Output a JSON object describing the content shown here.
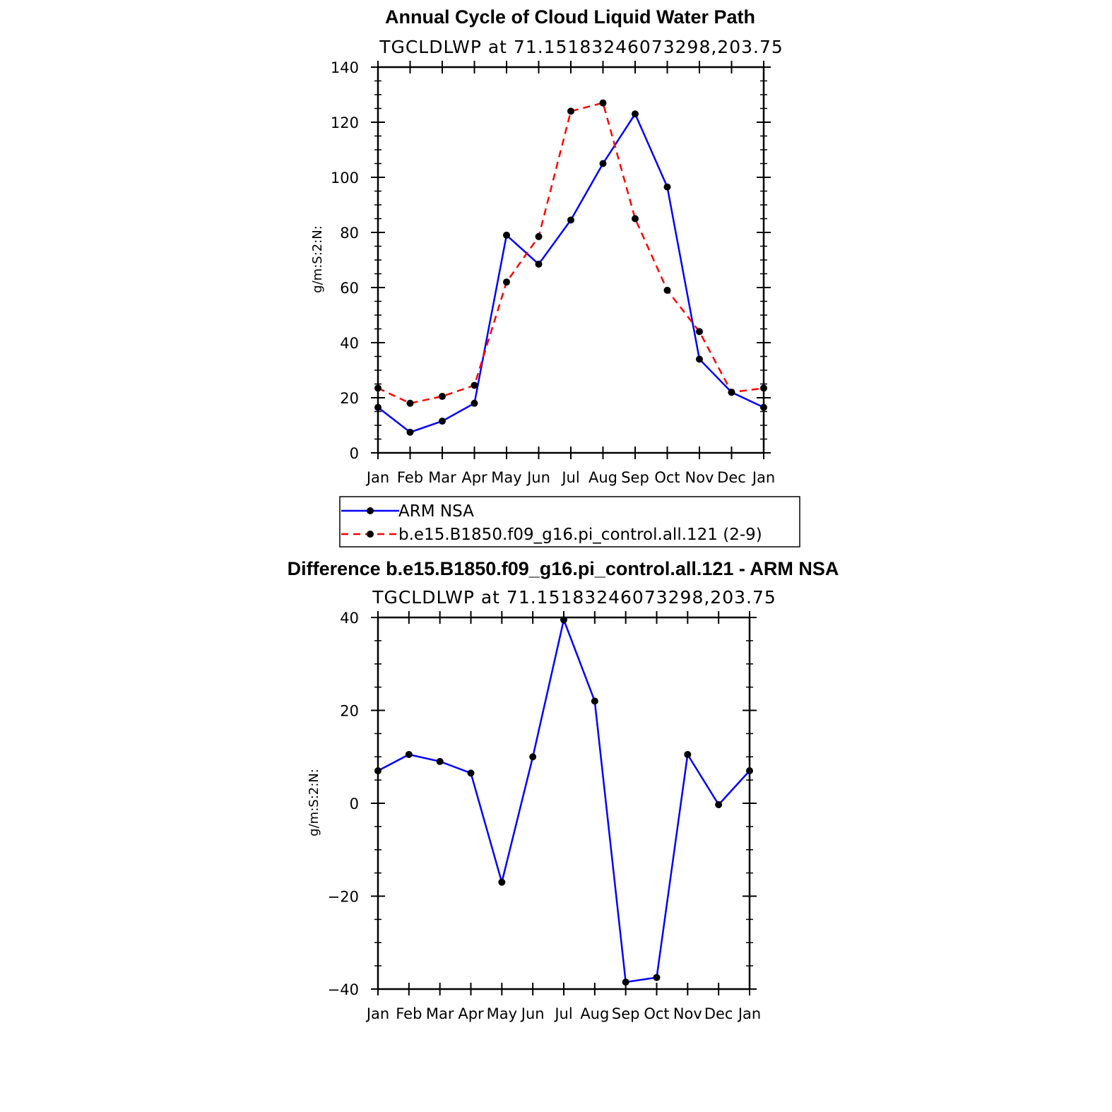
{
  "chart_data": [
    {
      "type": "line",
      "title": "Annual Cycle of Cloud Liquid Water Path",
      "subtitle": "TGCLDLWP at 71.15183246073298,203.75",
      "ylabel": "g/m:S:2:N:",
      "ylim": [
        0,
        140
      ],
      "yticks": [
        0,
        20,
        40,
        60,
        80,
        100,
        120,
        140
      ],
      "x": [
        "Jan",
        "Feb",
        "Mar",
        "Apr",
        "May",
        "Jun",
        "Jul",
        "Aug",
        "Sep",
        "Oct",
        "Nov",
        "Dec",
        "Jan"
      ],
      "series": [
        {
          "name": "ARM NSA",
          "color": "#0000ff",
          "dash": "solid",
          "values": [
            16.5,
            7.5,
            11.5,
            18.0,
            79.0,
            68.5,
            84.5,
            105.0,
            123.0,
            96.5,
            34.0,
            22.0,
            16.5
          ]
        },
        {
          "name": "b.e15.B1850.f09_g16.pi_control.all.121 (2-9)",
          "color": "#ff0000",
          "dash": "dashed",
          "values": [
            23.5,
            18.0,
            20.5,
            24.5,
            62.0,
            78.5,
            124.0,
            127.0,
            85.0,
            59.0,
            44.0,
            22.0,
            23.5
          ]
        }
      ],
      "legend": "below"
    },
    {
      "type": "line",
      "title": "Difference b.e15.B1850.f09_g16.pi_control.all.121 - ARM NSA",
      "subtitle": "TGCLDLWP at 71.15183246073298,203.75",
      "ylabel": "g/m:S:2:N:",
      "ylim": [
        -40,
        40
      ],
      "yticks": [
        -40,
        -20,
        0,
        20,
        40
      ],
      "ytick_labels": [
        "−40",
        "−20",
        "0",
        "20",
        "40"
      ],
      "x": [
        "Jan",
        "Feb",
        "Mar",
        "Apr",
        "May",
        "Jun",
        "Jul",
        "Aug",
        "Sep",
        "Oct",
        "Nov",
        "Dec",
        "Jan"
      ],
      "series": [
        {
          "color": "#0000ff",
          "dash": "solid",
          "values": [
            7.0,
            10.5,
            9.0,
            6.5,
            -17.0,
            10.0,
            39.5,
            22.0,
            -38.5,
            -37.5,
            10.5,
            -0.3,
            7.0
          ]
        }
      ]
    }
  ]
}
